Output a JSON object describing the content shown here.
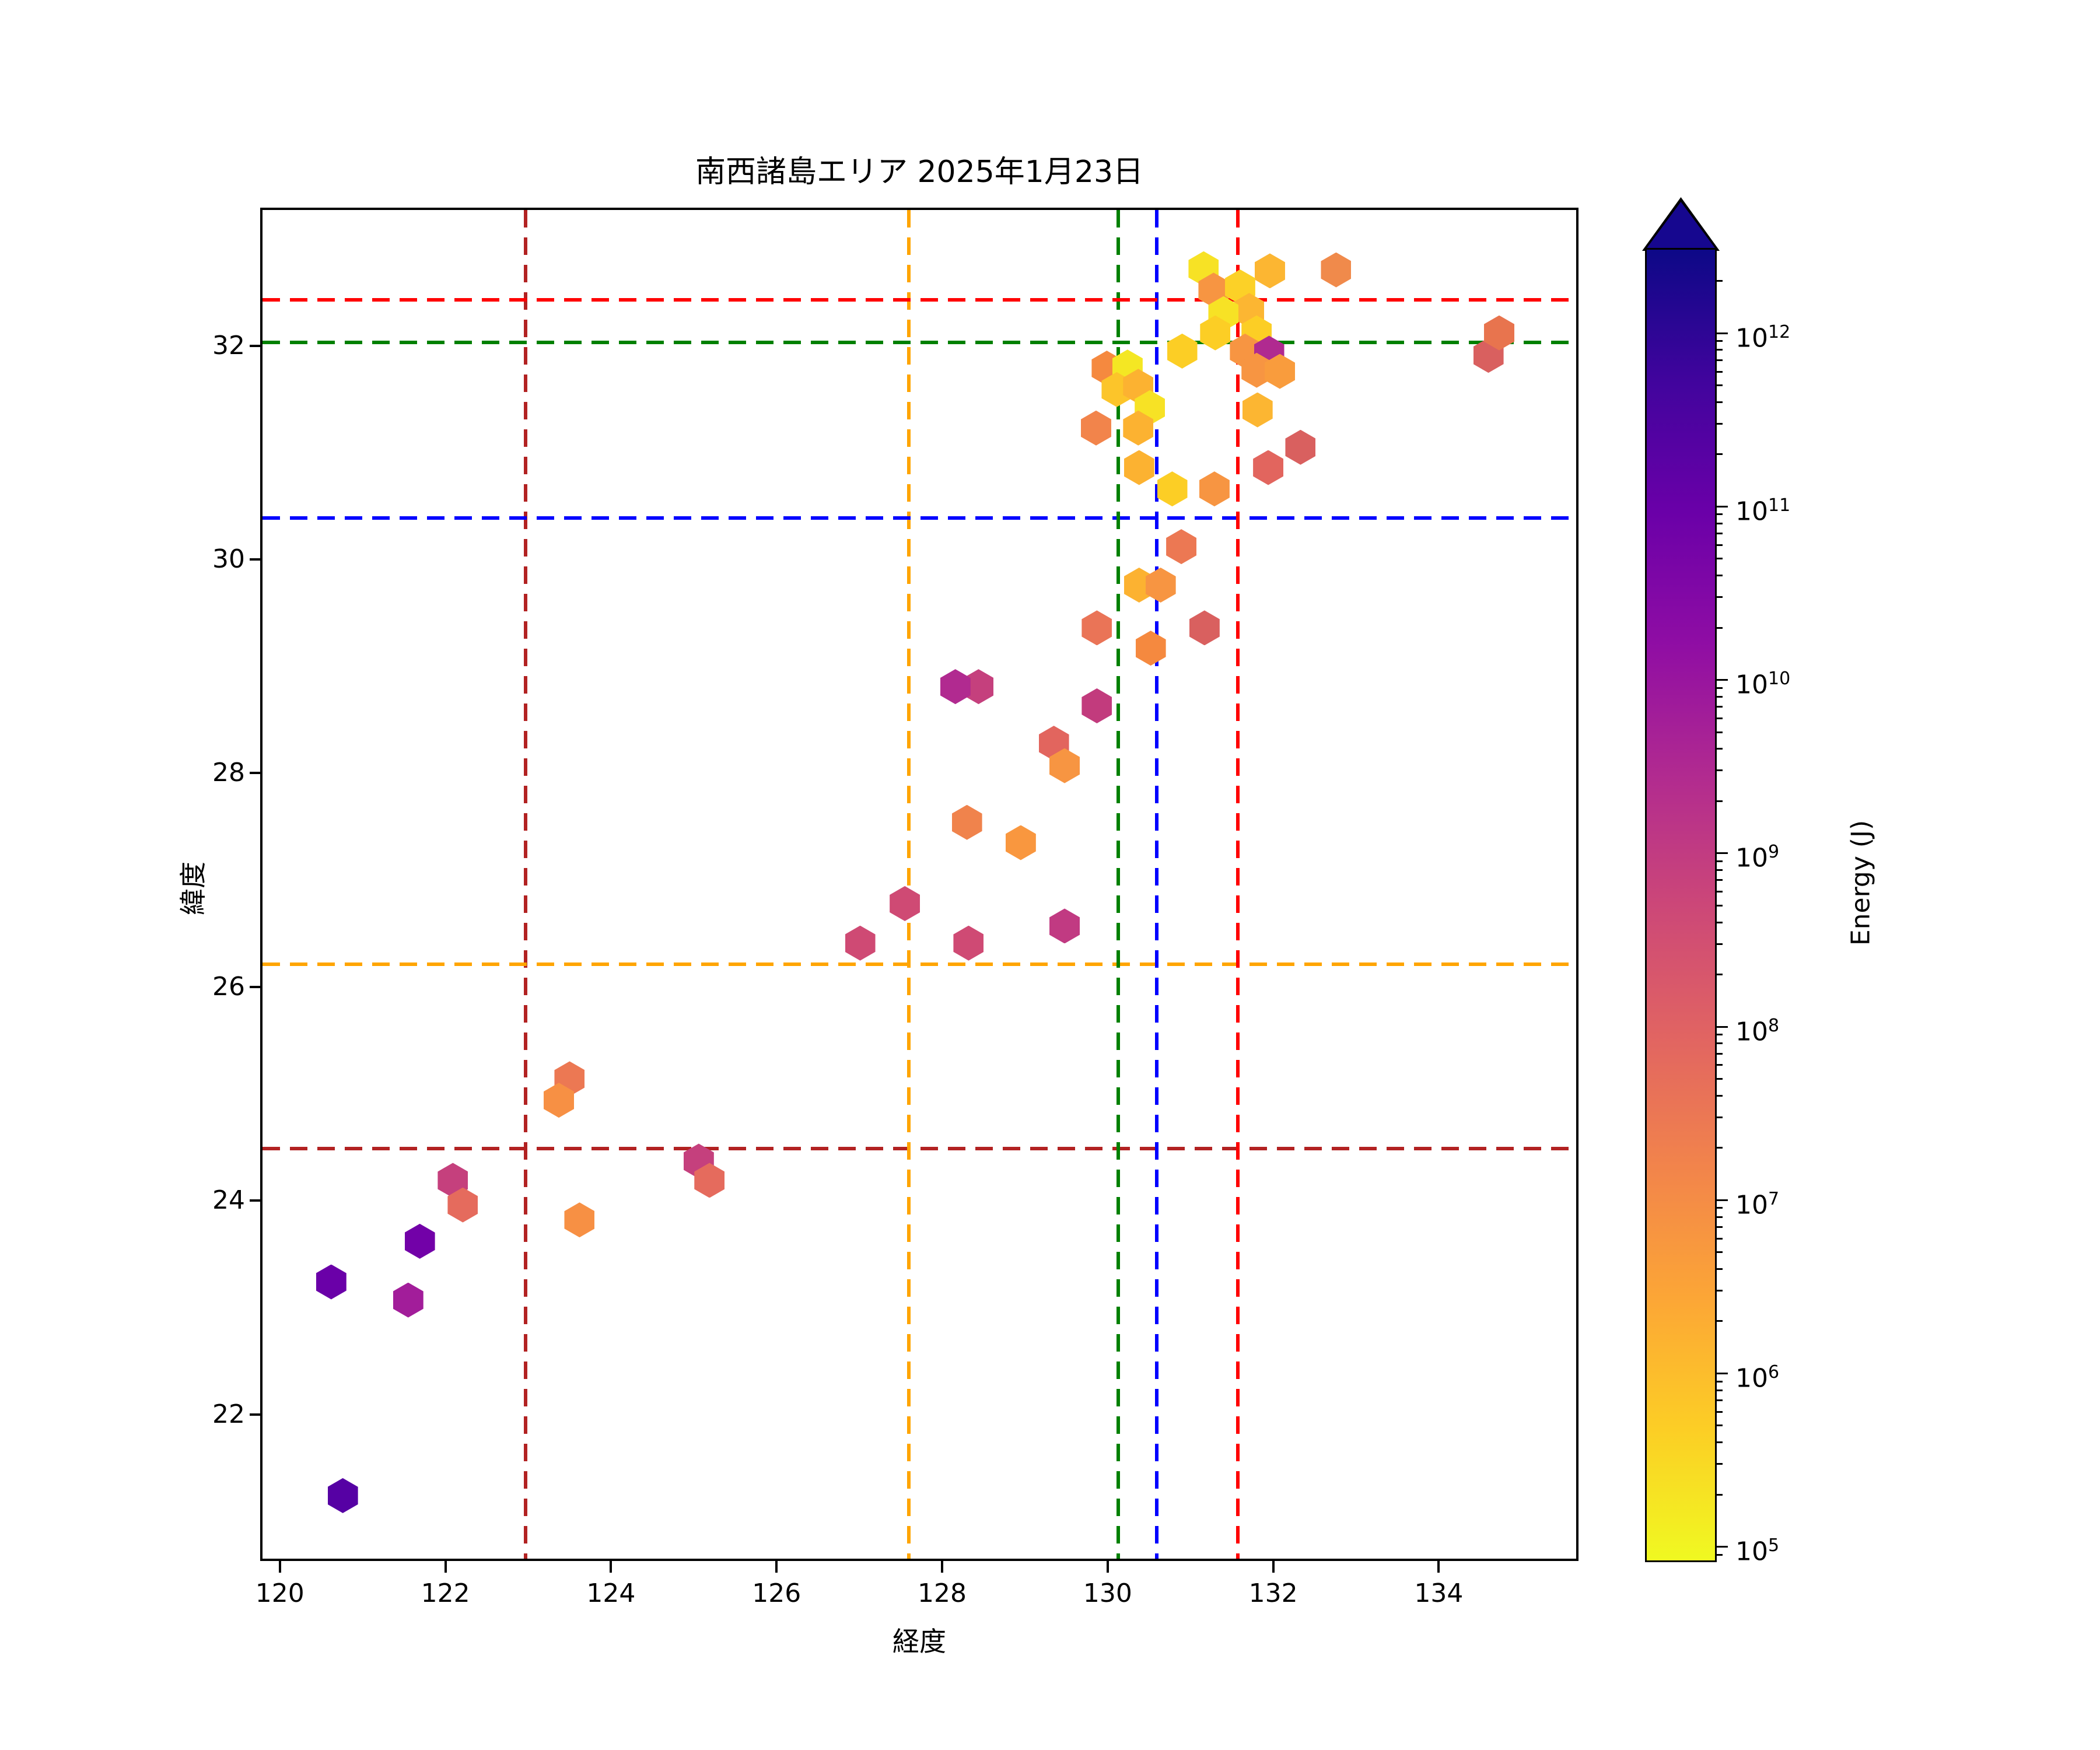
{
  "title": "南西諸島エリア 2025年1月23日",
  "axes": {
    "xlabel": "経度",
    "ylabel": "緯度"
  },
  "colorbar": {
    "label": "Energy (J)",
    "tick_exponents": [
      12,
      11,
      10,
      9,
      8,
      7,
      6,
      5
    ],
    "log_range": [
      4.93,
      12.49
    ],
    "extend": "max",
    "extend_color": "#16078f",
    "gradient_top_to_bottom": [
      "#0d0887",
      "#41049d",
      "#6a00a8",
      "#8f0da4",
      "#b12a90",
      "#cc4778",
      "#e16462",
      "#f2844b",
      "#fca636",
      "#fcce25",
      "#f0f921"
    ]
  },
  "chart_data": {
    "type": "scatter",
    "marker": "hexagon",
    "title": "南西諸島エリア 2025年1月23日",
    "xlabel": "経度",
    "ylabel": "緯度",
    "xlim": [
      119.79,
      135.66
    ],
    "ylim": [
      20.65,
      33.27
    ],
    "x_ticks": [
      120,
      122,
      124,
      126,
      128,
      130,
      132,
      134
    ],
    "y_ticks": [
      22,
      24,
      26,
      28,
      30,
      32
    ],
    "grid": false,
    "colorbar_label": "Energy (J)",
    "crosshairs": [
      {
        "color": "#b22222",
        "lon": 122.97,
        "lat": 24.49
      },
      {
        "color": "#ffa500",
        "lon": 127.6,
        "lat": 26.21
      },
      {
        "color": "#0000ff",
        "lon": 130.59,
        "lat": 30.39
      },
      {
        "color": "#008000",
        "lon": 130.13,
        "lat": 32.03
      },
      {
        "color": "#ff0000",
        "lon": 131.57,
        "lat": 32.43
      }
    ],
    "points": [
      {
        "lon": 120.76,
        "lat": 21.24,
        "color": "#5601a4"
      },
      {
        "lon": 120.62,
        "lat": 23.24,
        "color": "#6a00a8"
      },
      {
        "lon": 121.55,
        "lat": 23.07,
        "color": "#a21d9a"
      },
      {
        "lon": 121.69,
        "lat": 23.62,
        "color": "#7201a8"
      },
      {
        "lon": 122.09,
        "lat": 24.19,
        "color": "#c5407d"
      },
      {
        "lon": 122.21,
        "lat": 23.96,
        "color": "#e56b5d"
      },
      {
        "lon": 123.5,
        "lat": 25.14,
        "color": "#ec7853"
      },
      {
        "lon": 123.37,
        "lat": 24.94,
        "color": "#f79044"
      },
      {
        "lon": 123.62,
        "lat": 23.82,
        "color": "#f79044"
      },
      {
        "lon": 125.06,
        "lat": 24.37,
        "color": "#c5407d"
      },
      {
        "lon": 125.19,
        "lat": 24.19,
        "color": "#e56b5d"
      },
      {
        "lon": 127.01,
        "lat": 26.41,
        "color": "#cf4a74"
      },
      {
        "lon": 127.55,
        "lat": 26.78,
        "color": "#cf4a74"
      },
      {
        "lon": 128.32,
        "lat": 26.41,
        "color": "#cf4a74"
      },
      {
        "lon": 129.48,
        "lat": 26.57,
        "color": "#c13a82"
      },
      {
        "lon": 128.3,
        "lat": 27.54,
        "color": "#f0834c"
      },
      {
        "lon": 128.95,
        "lat": 27.35,
        "color": "#f9973f"
      },
      {
        "lon": 129.35,
        "lat": 28.28,
        "color": "#e2655e"
      },
      {
        "lon": 129.48,
        "lat": 28.07,
        "color": "#f79542"
      },
      {
        "lon": 128.44,
        "lat": 28.81,
        "color": "#c5407d"
      },
      {
        "lon": 128.16,
        "lat": 28.81,
        "color": "#b12a90"
      },
      {
        "lon": 129.87,
        "lat": 28.63,
        "color": "#c23b7d"
      },
      {
        "lon": 130.52,
        "lat": 29.17,
        "color": "#f5893f"
      },
      {
        "lon": 129.87,
        "lat": 29.36,
        "color": "#ea7457"
      },
      {
        "lon": 131.17,
        "lat": 29.36,
        "color": "#d9605f"
      },
      {
        "lon": 130.38,
        "lat": 29.76,
        "color": "#fcb231"
      },
      {
        "lon": 130.64,
        "lat": 29.76,
        "color": "#f79542"
      },
      {
        "lon": 130.89,
        "lat": 30.12,
        "color": "#ec7853"
      },
      {
        "lon": 129.99,
        "lat": 31.79,
        "color": "#f5893f"
      },
      {
        "lon": 130.24,
        "lat": 31.8,
        "color": "#f4e723"
      },
      {
        "lon": 130.11,
        "lat": 31.59,
        "color": "#fcc52a"
      },
      {
        "lon": 130.37,
        "lat": 31.62,
        "color": "#fcb231"
      },
      {
        "lon": 130.51,
        "lat": 31.42,
        "color": "#f7e225"
      },
      {
        "lon": 129.86,
        "lat": 31.23,
        "color": "#f2844b"
      },
      {
        "lon": 130.37,
        "lat": 31.23,
        "color": "#fcb231"
      },
      {
        "lon": 130.38,
        "lat": 30.86,
        "color": "#fcb231"
      },
      {
        "lon": 130.78,
        "lat": 30.66,
        "color": "#fcce25"
      },
      {
        "lon": 131.29,
        "lat": 30.66,
        "color": "#f79542"
      },
      {
        "lon": 130.9,
        "lat": 31.95,
        "color": "#fcce25"
      },
      {
        "lon": 131.16,
        "lat": 32.72,
        "color": "#f7e225"
      },
      {
        "lon": 131.96,
        "lat": 32.7,
        "color": "#fcb632"
      },
      {
        "lon": 132.76,
        "lat": 32.71,
        "color": "#f08a4b"
      },
      {
        "lon": 131.28,
        "lat": 32.52,
        "color": "#f79542"
      },
      {
        "lon": 131.6,
        "lat": 32.55,
        "color": "#fcd127"
      },
      {
        "lon": 131.71,
        "lat": 32.33,
        "color": "#fcb632"
      },
      {
        "lon": 131.4,
        "lat": 32.3,
        "color": "#f7e225"
      },
      {
        "lon": 131.3,
        "lat": 32.12,
        "color": "#fcce25"
      },
      {
        "lon": 131.8,
        "lat": 32.12,
        "color": "#fcce25"
      },
      {
        "lon": 131.66,
        "lat": 31.95,
        "color": "#f79542"
      },
      {
        "lon": 131.95,
        "lat": 31.93,
        "color": "#b02a90"
      },
      {
        "lon": 131.8,
        "lat": 31.77,
        "color": "#f79542"
      },
      {
        "lon": 132.08,
        "lat": 31.76,
        "color": "#f99c3d"
      },
      {
        "lon": 131.81,
        "lat": 31.4,
        "color": "#fcb632"
      },
      {
        "lon": 132.33,
        "lat": 31.05,
        "color": "#d9605f"
      },
      {
        "lon": 131.94,
        "lat": 30.86,
        "color": "#e2655e"
      },
      {
        "lon": 134.6,
        "lat": 31.91,
        "color": "#d9605f"
      },
      {
        "lon": 134.73,
        "lat": 32.12,
        "color": "#e8744e"
      }
    ]
  }
}
